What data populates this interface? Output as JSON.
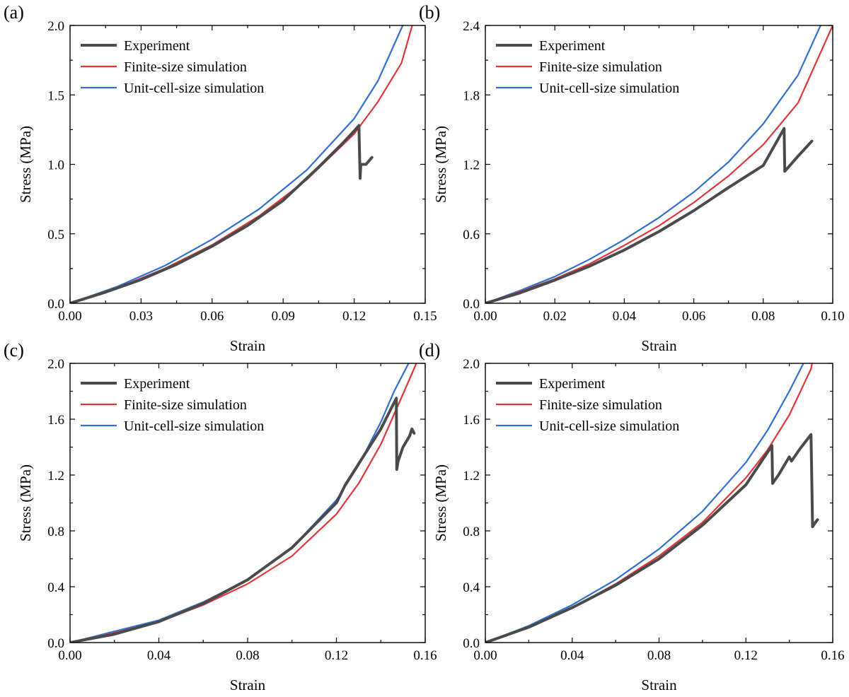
{
  "chart_data": [
    {
      "panel_label": "(a)",
      "type": "line",
      "xlabel": "Strain",
      "ylabel": "Stress (MPa)",
      "xlim": [
        0,
        0.15
      ],
      "ylim": [
        0,
        2.0
      ],
      "xticks": [
        "0.00",
        "0.03",
        "0.06",
        "0.09",
        "0.12",
        "0.15"
      ],
      "yticks": [
        "0.0",
        "0.5",
        "1.0",
        "1.5",
        "2.0"
      ],
      "legend": "top-left",
      "series": [
        {
          "name": "Experiment",
          "color": "#4a4a4a",
          "points": [
            [
              0,
              0
            ],
            [
              0.015,
              0.08
            ],
            [
              0.03,
              0.17
            ],
            [
              0.045,
              0.28
            ],
            [
              0.06,
              0.41
            ],
            [
              0.075,
              0.56
            ],
            [
              0.09,
              0.74
            ],
            [
              0.105,
              0.98
            ],
            [
              0.115,
              1.15
            ],
            [
              0.12,
              1.24
            ],
            [
              0.122,
              1.28
            ],
            [
              0.1225,
              0.9
            ],
            [
              0.1228,
              1.0
            ],
            [
              0.125,
              1.0
            ],
            [
              0.1275,
              1.05
            ]
          ]
        },
        {
          "name": "Finite-size simulation",
          "color": "#e0363a",
          "points": [
            [
              0,
              0
            ],
            [
              0.02,
              0.11
            ],
            [
              0.04,
              0.25
            ],
            [
              0.06,
              0.42
            ],
            [
              0.08,
              0.63
            ],
            [
              0.1,
              0.89
            ],
            [
              0.12,
              1.22
            ],
            [
              0.13,
              1.45
            ],
            [
              0.14,
              1.73
            ],
            [
              0.1445,
              2.0
            ]
          ]
        },
        {
          "name": "Unit-cell-size simulation",
          "color": "#2f6fd0",
          "points": [
            [
              0,
              0
            ],
            [
              0.02,
              0.12
            ],
            [
              0.04,
              0.27
            ],
            [
              0.06,
              0.46
            ],
            [
              0.08,
              0.68
            ],
            [
              0.1,
              0.96
            ],
            [
              0.12,
              1.33
            ],
            [
              0.13,
              1.6
            ],
            [
              0.1405,
              2.0
            ]
          ]
        }
      ]
    },
    {
      "panel_label": "(b)",
      "type": "line",
      "xlabel": "Strain",
      "ylabel": "Stress (MPa)",
      "xlim": [
        0,
        0.1
      ],
      "ylim": [
        0,
        2.4
      ],
      "xticks": [
        "0.00",
        "0.02",
        "0.04",
        "0.06",
        "0.08",
        "0.10"
      ],
      "yticks": [
        "0.0",
        "0.6",
        "1.2",
        "1.8",
        "2.4"
      ],
      "legend": "top-left",
      "series": [
        {
          "name": "Experiment",
          "color": "#4a4a4a",
          "points": [
            [
              0,
              0
            ],
            [
              0.01,
              0.09
            ],
            [
              0.02,
              0.2
            ],
            [
              0.03,
              0.32
            ],
            [
              0.04,
              0.46
            ],
            [
              0.05,
              0.62
            ],
            [
              0.06,
              0.8
            ],
            [
              0.07,
              1.0
            ],
            [
              0.08,
              1.19
            ],
            [
              0.086,
              1.51
            ],
            [
              0.0862,
              1.14
            ],
            [
              0.09,
              1.27
            ],
            [
              0.094,
              1.4
            ]
          ]
        },
        {
          "name": "Finite-size simulation",
          "color": "#e0363a",
          "points": [
            [
              0,
              0
            ],
            [
              0.01,
              0.1
            ],
            [
              0.02,
              0.21
            ],
            [
              0.03,
              0.34
            ],
            [
              0.04,
              0.5
            ],
            [
              0.05,
              0.67
            ],
            [
              0.06,
              0.87
            ],
            [
              0.07,
              1.1
            ],
            [
              0.08,
              1.37
            ],
            [
              0.09,
              1.73
            ],
            [
              0.1,
              2.4
            ]
          ]
        },
        {
          "name": "Unit-cell-size simulation",
          "color": "#2f6fd0",
          "points": [
            [
              0,
              0
            ],
            [
              0.01,
              0.11
            ],
            [
              0.02,
              0.23
            ],
            [
              0.03,
              0.38
            ],
            [
              0.04,
              0.55
            ],
            [
              0.05,
              0.74
            ],
            [
              0.06,
              0.96
            ],
            [
              0.07,
              1.22
            ],
            [
              0.08,
              1.55
            ],
            [
              0.09,
              1.97
            ],
            [
              0.0965,
              2.4
            ]
          ]
        }
      ]
    },
    {
      "panel_label": "(c)",
      "type": "line",
      "xlabel": "Strain",
      "ylabel": "Stress (MPa)",
      "xlim": [
        0,
        0.16
      ],
      "ylim": [
        0,
        2.0
      ],
      "xticks": [
        "0.00",
        "0.04",
        "0.08",
        "0.12",
        "0.16"
      ],
      "yticks": [
        "0.0",
        "0.4",
        "0.8",
        "1.2",
        "1.6",
        "2.0"
      ],
      "legend": "top-left",
      "series": [
        {
          "name": "Experiment",
          "color": "#4a4a4a",
          "points": [
            [
              0,
              0
            ],
            [
              0.02,
              0.06
            ],
            [
              0.04,
              0.15
            ],
            [
              0.06,
              0.28
            ],
            [
              0.08,
              0.45
            ],
            [
              0.1,
              0.68
            ],
            [
              0.12,
              1.0
            ],
            [
              0.124,
              1.13
            ],
            [
              0.13,
              1.28
            ],
            [
              0.14,
              1.53
            ],
            [
              0.147,
              1.75
            ],
            [
              0.1472,
              1.24
            ],
            [
              0.1478,
              1.3
            ],
            [
              0.15,
              1.4
            ],
            [
              0.153,
              1.48
            ],
            [
              0.154,
              1.53
            ],
            [
              0.155,
              1.5
            ]
          ]
        },
        {
          "name": "Finite-size simulation",
          "color": "#e0363a",
          "points": [
            [
              0,
              0
            ],
            [
              0.02,
              0.07
            ],
            [
              0.04,
              0.15
            ],
            [
              0.06,
              0.27
            ],
            [
              0.08,
              0.42
            ],
            [
              0.1,
              0.62
            ],
            [
              0.12,
              0.92
            ],
            [
              0.13,
              1.14
            ],
            [
              0.14,
              1.42
            ],
            [
              0.15,
              1.78
            ],
            [
              0.156,
              2.0
            ]
          ]
        },
        {
          "name": "Unit-cell-size simulation",
          "color": "#2f6fd0",
          "points": [
            [
              0,
              0
            ],
            [
              0.02,
              0.08
            ],
            [
              0.04,
              0.16
            ],
            [
              0.06,
              0.29
            ],
            [
              0.08,
              0.45
            ],
            [
              0.1,
              0.68
            ],
            [
              0.12,
              1.02
            ],
            [
              0.13,
              1.27
            ],
            [
              0.14,
              1.58
            ],
            [
              0.146,
              1.8
            ],
            [
              0.1525,
              2.0
            ]
          ]
        }
      ]
    },
    {
      "panel_label": "(d)",
      "type": "line",
      "xlabel": "Strain",
      "ylabel": "Stress (MPa)",
      "xlim": [
        0,
        0.16
      ],
      "ylim": [
        0,
        2.0
      ],
      "xticks": [
        "0.00",
        "0.04",
        "0.08",
        "0.12",
        "0.16"
      ],
      "yticks": [
        "0.0",
        "0.4",
        "0.8",
        "1.2",
        "1.6",
        "2.0"
      ],
      "legend": "top-left",
      "series": [
        {
          "name": "Experiment",
          "color": "#4a4a4a",
          "points": [
            [
              0,
              0
            ],
            [
              0.02,
              0.11
            ],
            [
              0.04,
              0.25
            ],
            [
              0.06,
              0.41
            ],
            [
              0.08,
              0.6
            ],
            [
              0.1,
              0.84
            ],
            [
              0.12,
              1.13
            ],
            [
              0.132,
              1.41
            ],
            [
              0.1323,
              1.14
            ],
            [
              0.135,
              1.2
            ],
            [
              0.14,
              1.33
            ],
            [
              0.141,
              1.3
            ],
            [
              0.145,
              1.39
            ],
            [
              0.15,
              1.49
            ],
            [
              0.1505,
              1.05
            ],
            [
              0.1507,
              0.83
            ],
            [
              0.152,
              0.86
            ],
            [
              0.153,
              0.88
            ]
          ]
        },
        {
          "name": "Finite-size simulation",
          "color": "#e0363a",
          "points": [
            [
              0,
              0
            ],
            [
              0.02,
              0.11
            ],
            [
              0.04,
              0.25
            ],
            [
              0.06,
              0.42
            ],
            [
              0.08,
              0.62
            ],
            [
              0.1,
              0.86
            ],
            [
              0.12,
              1.18
            ],
            [
              0.13,
              1.38
            ],
            [
              0.14,
              1.63
            ],
            [
              0.15,
              1.96
            ],
            [
              0.1505,
              2.0
            ]
          ]
        },
        {
          "name": "Unit-cell-size simulation",
          "color": "#2f6fd0",
          "points": [
            [
              0,
              0
            ],
            [
              0.02,
              0.12
            ],
            [
              0.04,
              0.27
            ],
            [
              0.06,
              0.45
            ],
            [
              0.08,
              0.67
            ],
            [
              0.1,
              0.94
            ],
            [
              0.12,
              1.29
            ],
            [
              0.13,
              1.52
            ],
            [
              0.14,
              1.8
            ],
            [
              0.1465,
              2.0
            ]
          ]
        }
      ]
    }
  ]
}
